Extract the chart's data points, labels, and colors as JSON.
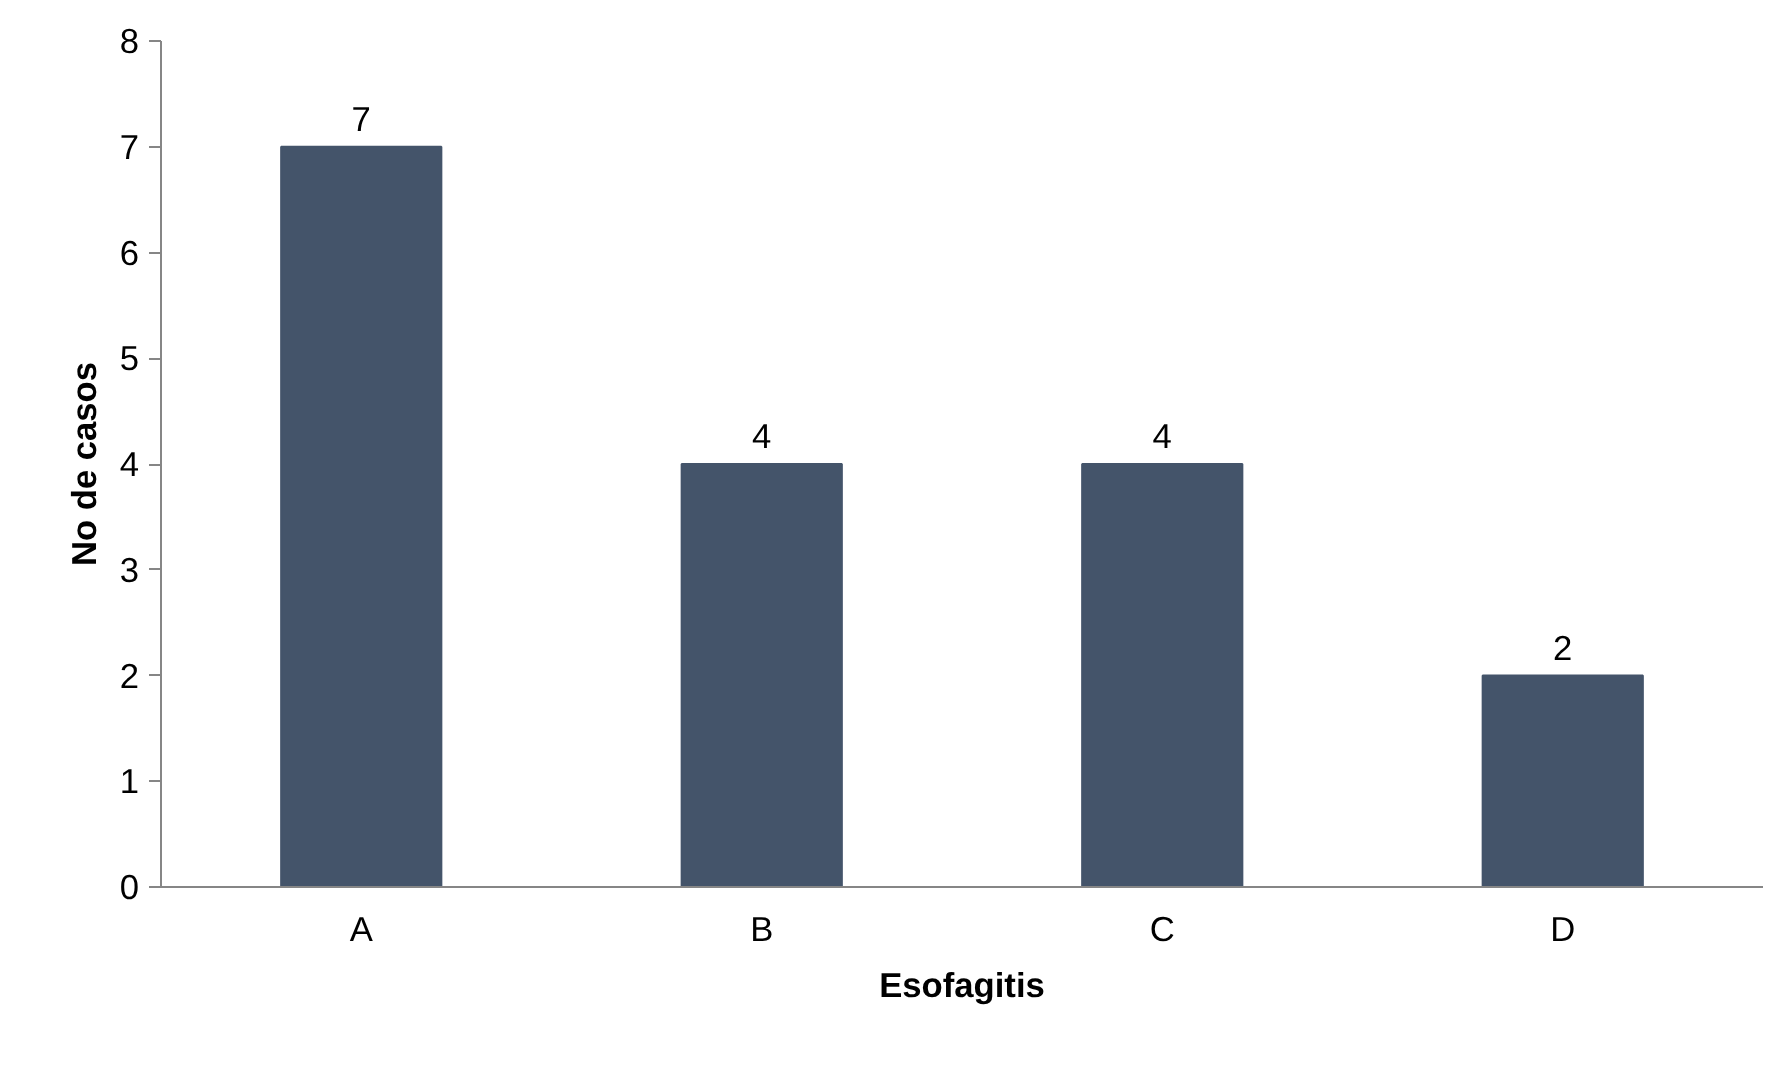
{
  "chart_data": {
    "type": "bar",
    "xlabel": "Esofagitis",
    "ylabel": "No de casos",
    "categories": [
      "A",
      "B",
      "C",
      "D"
    ],
    "values": [
      7,
      4,
      4,
      2
    ],
    "color": "#44546a",
    "ylim": [
      0,
      8
    ],
    "yticks": [
      0,
      1,
      2,
      3,
      4,
      5,
      6,
      7,
      8
    ],
    "grid": false,
    "data_labels": true
  }
}
